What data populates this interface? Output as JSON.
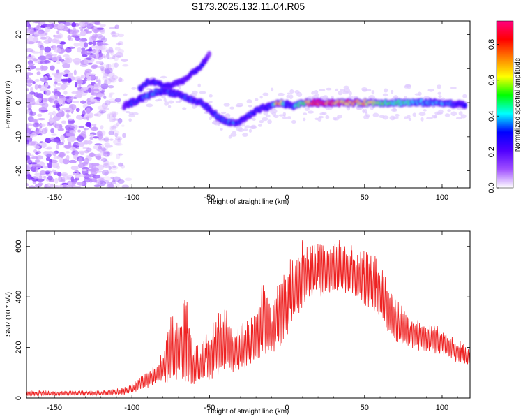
{
  "figure_title": "S173.2025.132.11.04.R05",
  "chart_data": [
    {
      "type": "heatmap",
      "xlabel": "Height of straight line (km)",
      "ylabel": "Frequency (Hz)",
      "xlim": [
        -168,
        118
      ],
      "ylim": [
        -25,
        24
      ],
      "xticks": [
        -150,
        -100,
        -50,
        0,
        50,
        100
      ],
      "yticks": [
        -20,
        -10,
        0,
        10,
        20
      ],
      "colorbar": {
        "label": "Normalized spectral amplitude",
        "range": [
          0,
          0.93
        ],
        "ticks": [
          0.0,
          0.2,
          0.4,
          0.6,
          0.8
        ],
        "colors": [
          "#ffffff",
          "#a050ff",
          "#5000ff",
          "#0000ff",
          "#00ffff",
          "#00ff00",
          "#ffff00",
          "#ff8000",
          "#ff0000",
          "#ff0080"
        ]
      },
      "noise_region_x": [
        -168,
        -105
      ],
      "ridge": {
        "x": [
          -105,
          -100,
          -95,
          -90,
          -85,
          -80,
          -75,
          -70,
          -65,
          -60,
          -55,
          -50,
          -45,
          -40,
          -35,
          -30,
          -25,
          -20,
          -15,
          -10,
          -5,
          0,
          5,
          10,
          20,
          30,
          40,
          50,
          60,
          70,
          80,
          90,
          100,
          110,
          115
        ],
        "freq": [
          -1,
          0,
          1,
          2,
          3,
          3.5,
          3,
          2.5,
          1.5,
          0.5,
          0,
          -2,
          -4,
          -5.5,
          -6,
          -5.5,
          -4,
          -2.5,
          -1.5,
          -1,
          0,
          -0.5,
          -1,
          0,
          0,
          0,
          0,
          0,
          0,
          0,
          0,
          0,
          0,
          -0.5,
          -0.5
        ],
        "amplitude": [
          0.15,
          0.3,
          0.3,
          0.35,
          0.35,
          0.3,
          0.3,
          0.3,
          0.3,
          0.3,
          0.3,
          0.3,
          0.3,
          0.3,
          0.35,
          0.3,
          0.3,
          0.3,
          0.3,
          0.3,
          0.75,
          0.3,
          0.35,
          0.55,
          0.9,
          0.75,
          0.7,
          0.65,
          0.5,
          0.45,
          0.4,
          0.35,
          0.35,
          0.3,
          0.3
        ]
      },
      "upper_branch": {
        "x": [
          -95,
          -90,
          -85,
          -80,
          -75,
          -70,
          -65,
          -60,
          -55,
          -50
        ],
        "freq": [
          4,
          6,
          6,
          5,
          5,
          6,
          7,
          9,
          11,
          14
        ],
        "amplitude": [
          0.3,
          0.3,
          0.3,
          0.3,
          0.25,
          0.2,
          0.2,
          0.25,
          0.3,
          0.1
        ]
      }
    },
    {
      "type": "line",
      "xlabel": "Height of straight line (km)",
      "ylabel": "SNR (10 * v/v)",
      "xlim": [
        -168,
        118
      ],
      "ylim": [
        0,
        660
      ],
      "xticks": [
        -150,
        -100,
        -50,
        0,
        50,
        100
      ],
      "yticks": [
        0,
        200,
        400,
        600
      ],
      "color": "#ee2222",
      "envelope": {
        "x": [
          -168,
          -140,
          -120,
          -105,
          -100,
          -90,
          -80,
          -75,
          -70,
          -65,
          -60,
          -55,
          -50,
          -45,
          -40,
          -35,
          -30,
          -25,
          -20,
          -15,
          -10,
          -5,
          0,
          5,
          10,
          15,
          20,
          25,
          30,
          35,
          40,
          45,
          50,
          55,
          60,
          65,
          70,
          75,
          80,
          90,
          100,
          110,
          118
        ],
        "high": [
          28,
          30,
          30,
          40,
          60,
          110,
          180,
          320,
          330,
          400,
          200,
          220,
          270,
          330,
          370,
          260,
          300,
          310,
          330,
          520,
          360,
          470,
          540,
          560,
          640,
          600,
          610,
          630,
          630,
          620,
          610,
          590,
          580,
          560,
          540,
          460,
          400,
          360,
          330,
          300,
          280,
          230,
          200
        ],
        "low": [
          8,
          10,
          10,
          12,
          20,
          40,
          60,
          60,
          70,
          60,
          50,
          60,
          70,
          80,
          100,
          100,
          110,
          110,
          150,
          160,
          170,
          190,
          240,
          300,
          360,
          390,
          400,
          400,
          410,
          400,
          400,
          380,
          360,
          340,
          300,
          260,
          220,
          200,
          190,
          180,
          170,
          140,
          130
        ]
      }
    }
  ]
}
